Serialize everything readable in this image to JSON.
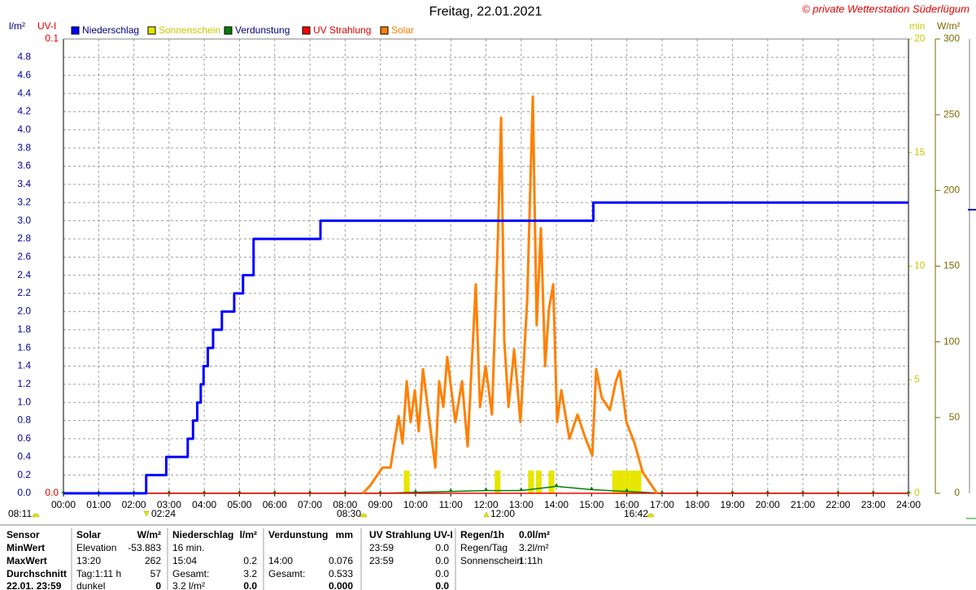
{
  "chart_data": {
    "type": "line",
    "title": "Freitag, 22.01.2021",
    "copyright": "© private Wetterstation Süderlügum",
    "ylabel": "l/m²",
    "uv_label": "UV-I",
    "min_label": "min",
    "y2label": "W/m²",
    "grid": true,
    "xlim": [
      0,
      24
    ],
    "xticks": [
      {
        "value": 0,
        "label": "00:00"
      },
      {
        "value": 1,
        "label": "01:00"
      },
      {
        "value": 2,
        "label": "02:00"
      },
      {
        "value": 3,
        "label": "03:00"
      },
      {
        "value": 4,
        "label": "04:00"
      },
      {
        "value": 5,
        "label": "05:00"
      },
      {
        "value": 6,
        "label": "06:00"
      },
      {
        "value": 7,
        "label": "07:00"
      },
      {
        "value": 8,
        "label": "08:00"
      },
      {
        "value": 9,
        "label": "09:00"
      },
      {
        "value": 10,
        "label": "10:00"
      },
      {
        "value": 11,
        "label": "11:00"
      },
      {
        "value": 12,
        "label": "12:00"
      },
      {
        "value": 13,
        "label": "13:00"
      },
      {
        "value": 14,
        "label": "14:00"
      },
      {
        "value": 15,
        "label": "15:00"
      },
      {
        "value": 16,
        "label": "16:00"
      },
      {
        "value": 17,
        "label": "17:00"
      },
      {
        "value": 18,
        "label": "18:00"
      },
      {
        "value": 19,
        "label": "19:00"
      },
      {
        "value": 20,
        "label": "20:00"
      },
      {
        "value": 21,
        "label": "21:00"
      },
      {
        "value": 22,
        "label": "22:00"
      },
      {
        "value": 23,
        "label": "23:00"
      },
      {
        "value": 24,
        "label": "24:00"
      }
    ],
    "ylim": [
      0,
      5
    ],
    "yticks": [
      {
        "value": 0,
        "label": "0.0"
      },
      0.2,
      0.4,
      0.6,
      0.8,
      {
        "value": 1,
        "label": "1.0"
      },
      1.2,
      1.4,
      1.6,
      1.8,
      {
        "value": 2,
        "label": "2.0"
      },
      2.2,
      2.4,
      2.6,
      2.8,
      {
        "value": 3,
        "label": "3.0"
      },
      3.2,
      3.4,
      3.6,
      3.8,
      {
        "value": 4,
        "label": "4.0"
      },
      4.2,
      4.4,
      4.6,
      4.8
    ],
    "uv_lim": [
      0,
      0.1
    ],
    "uv_ticks": [
      {
        "value": 0,
        "label": "0.0"
      },
      0.1
    ],
    "min_lim": [
      0,
      20
    ],
    "min_ticks": [
      0,
      5,
      10,
      15,
      20
    ],
    "y2lim": [
      0,
      300
    ],
    "y2ticks": [
      0,
      50,
      100,
      150,
      200,
      250,
      300
    ],
    "series": [
      {
        "name": "Niederschlag",
        "color": "#0000ff",
        "kind": "line",
        "axis": "y",
        "x": [
          0,
          2.35,
          2.35,
          2.92,
          2.92,
          3.53,
          3.53,
          3.68,
          3.68,
          3.8,
          3.8,
          3.9,
          3.9,
          3.98,
          3.98,
          4.1,
          4.1,
          4.25,
          4.25,
          4.5,
          4.5,
          4.85,
          4.85,
          5.1,
          5.1,
          5.4,
          5.4,
          7.3,
          7.3,
          15.05,
          15.05,
          24
        ],
        "values": [
          0,
          0,
          0.2,
          0.2,
          0.4,
          0.4,
          0.6,
          0.6,
          0.8,
          0.8,
          1.0,
          1.0,
          1.2,
          1.2,
          1.4,
          1.4,
          1.6,
          1.6,
          1.8,
          1.8,
          2.0,
          2.0,
          2.2,
          2.2,
          2.4,
          2.4,
          2.8,
          2.8,
          3.0,
          3.0,
          3.2,
          3.2
        ]
      },
      {
        "name": "Sonnenschein",
        "color": "#e6e600",
        "kind": "bar",
        "axis": "min",
        "x": [
          9.75,
          12.33,
          13.28,
          13.5,
          13.86,
          15.67,
          15.83,
          16.0,
          16.17,
          16.33
        ],
        "values": [
          1,
          1,
          1,
          1,
          1,
          1,
          1,
          1,
          1,
          1
        ]
      },
      {
        "name": "Verdunstung",
        "color": "#008000",
        "kind": "line",
        "axis": "y",
        "x": [
          0,
          1,
          2,
          3,
          4,
          5,
          6,
          7,
          8,
          9,
          10,
          11,
          12,
          13,
          14,
          15,
          16,
          17,
          18,
          19,
          20,
          21,
          22,
          23,
          24
        ],
        "values": [
          0,
          0,
          0,
          0,
          0,
          0,
          0,
          0,
          0,
          0,
          0.01,
          0.02,
          0.03,
          0.03,
          0.076,
          0.04,
          0.02,
          0,
          0,
          0,
          0,
          0,
          0,
          0,
          0
        ]
      },
      {
        "name": "UV Strahlung",
        "color": "#ff0000",
        "kind": "line",
        "axis": "uv",
        "x": [
          0,
          24
        ],
        "values": [
          0,
          0
        ]
      },
      {
        "name": "Solar",
        "color": "#ff8000",
        "kind": "line",
        "axis": "y2",
        "x": [
          8.5,
          8.71,
          9.06,
          9.29,
          9.52,
          9.63,
          9.75,
          9.86,
          9.98,
          10.09,
          10.21,
          10.4,
          10.56,
          10.67,
          10.79,
          10.9,
          11.13,
          11.32,
          11.48,
          11.71,
          11.83,
          11.99,
          12.17,
          12.34,
          12.43,
          12.52,
          12.64,
          12.8,
          12.98,
          13.17,
          13.33,
          13.44,
          13.56,
          13.68,
          13.79,
          13.91,
          14.02,
          14.14,
          14.37,
          14.6,
          14.83,
          15.02,
          15.13,
          15.29,
          15.52,
          15.69,
          15.8,
          15.99,
          16.22,
          16.45,
          16.68,
          16.86
        ],
        "values": [
          0,
          5,
          17,
          17,
          51,
          33,
          74,
          47,
          68,
          41,
          82,
          47,
          17,
          74,
          57,
          90,
          47,
          74,
          31,
          138,
          57,
          84,
          52,
          170,
          248,
          101,
          57,
          95,
          47,
          127,
          262,
          111,
          175,
          84,
          122,
          138,
          47,
          68,
          36,
          52,
          36,
          25,
          82,
          63,
          55,
          74,
          81,
          47,
          33,
          14,
          6,
          0
        ]
      }
    ],
    "annotations": [
      "08:11",
      "02:24",
      "08:30",
      "12:00",
      "16:42"
    ]
  },
  "stats_table": {
    "rows": [
      [
        "Sensor",
        "Solar",
        "W/m²",
        "Niederschlag",
        "l/m²",
        "Verdunstung",
        "mm",
        "UV Strahlung UV-I",
        null,
        "Regen/1h",
        "0.0l/m²"
      ],
      [
        "MinWert",
        "Elevation",
        "-53.883",
        "16 min.",
        null,
        null,
        null,
        "23:59",
        "0.0",
        "Regen/Tag",
        "3.2l/m²"
      ],
      [
        "MaxWert",
        "13:20",
        "262",
        "15:04",
        "0.2",
        "14:00",
        "0.076",
        "23:59",
        "0.0",
        "Sonnenschein",
        "1:11h"
      ],
      [
        "Durchschnitt",
        "Tag:1:11 h",
        "57",
        "Gesamt:",
        "3.2",
        "Gesamt:",
        "0.533",
        null,
        "0.0",
        null,
        null
      ],
      [
        "22.01. 23:59",
        "dunkel",
        "0",
        "3.2 l/m²",
        "0.0",
        null,
        "0.000",
        null,
        "0.0",
        null,
        null
      ]
    ]
  }
}
